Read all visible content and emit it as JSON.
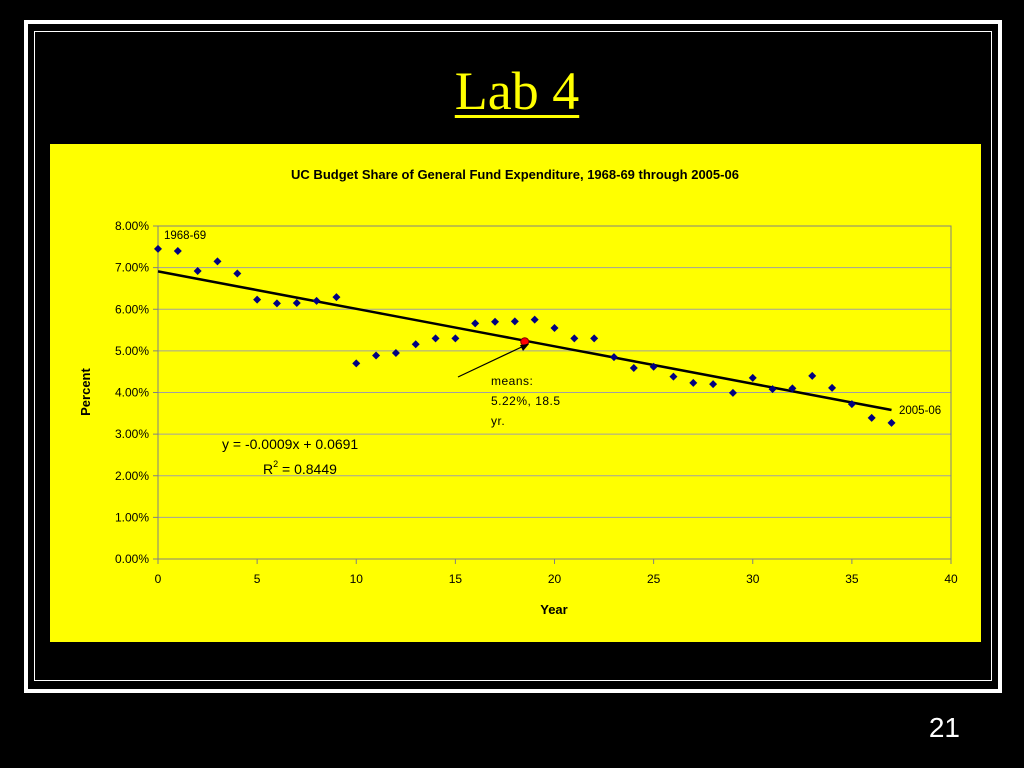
{
  "slide": {
    "title": "Lab 4",
    "page_number": "21"
  },
  "colors": {
    "background": "#000000",
    "title": "#ffff00",
    "chart_background": "#ffff00",
    "points": "#000080",
    "means_point": "#ff0000",
    "trendline": "#000000"
  },
  "chart_data": {
    "type": "scatter",
    "title": "UC Budget Share of General Fund Expenditure, 1968-69 through 2005-06",
    "xlabel": "Year",
    "ylabel": "Percent",
    "xlim": [
      0,
      40
    ],
    "ylim": [
      0,
      0.08
    ],
    "x_ticks": [
      0,
      5,
      10,
      15,
      20,
      25,
      30,
      35,
      40
    ],
    "x_tick_labels": [
      "0",
      "5",
      "10",
      "15",
      "20",
      "25",
      "30",
      "35",
      "40"
    ],
    "y_ticks": [
      0,
      0.01,
      0.02,
      0.03,
      0.04,
      0.05,
      0.06,
      0.07,
      0.08
    ],
    "y_tick_labels": [
      "0.00%",
      "1.00%",
      "2.00%",
      "3.00%",
      "4.00%",
      "5.00%",
      "6.00%",
      "7.00%",
      "8.00%"
    ],
    "grid": "horizontal",
    "legend": "none",
    "points": [
      {
        "x": 0,
        "y": 0.0745
      },
      {
        "x": 1,
        "y": 0.074
      },
      {
        "x": 2,
        "y": 0.0692
      },
      {
        "x": 3,
        "y": 0.0715
      },
      {
        "x": 4,
        "y": 0.0686
      },
      {
        "x": 5,
        "y": 0.0623
      },
      {
        "x": 6,
        "y": 0.0614
      },
      {
        "x": 7,
        "y": 0.0615
      },
      {
        "x": 8,
        "y": 0.062
      },
      {
        "x": 9,
        "y": 0.0629
      },
      {
        "x": 10,
        "y": 0.047
      },
      {
        "x": 11,
        "y": 0.0489
      },
      {
        "x": 12,
        "y": 0.0495
      },
      {
        "x": 13,
        "y": 0.0516
      },
      {
        "x": 14,
        "y": 0.053
      },
      {
        "x": 15,
        "y": 0.053
      },
      {
        "x": 16,
        "y": 0.0566
      },
      {
        "x": 17,
        "y": 0.057
      },
      {
        "x": 18,
        "y": 0.0571
      },
      {
        "x": 19,
        "y": 0.0575
      },
      {
        "x": 20,
        "y": 0.0555
      },
      {
        "x": 21,
        "y": 0.053
      },
      {
        "x": 22,
        "y": 0.053
      },
      {
        "x": 23,
        "y": 0.0485
      },
      {
        "x": 24,
        "y": 0.0459
      },
      {
        "x": 25,
        "y": 0.0462
      },
      {
        "x": 26,
        "y": 0.0438
      },
      {
        "x": 27,
        "y": 0.0423
      },
      {
        "x": 28,
        "y": 0.042
      },
      {
        "x": 29,
        "y": 0.0399
      },
      {
        "x": 30,
        "y": 0.0435
      },
      {
        "x": 31,
        "y": 0.0408
      },
      {
        "x": 32,
        "y": 0.041
      },
      {
        "x": 33,
        "y": 0.044
      },
      {
        "x": 34,
        "y": 0.0411
      },
      {
        "x": 35,
        "y": 0.0372
      },
      {
        "x": 36,
        "y": 0.0339
      },
      {
        "x": 37,
        "y": 0.0327
      }
    ],
    "trendline": {
      "x": [
        0,
        1,
        2,
        3,
        4,
        5,
        6,
        7,
        8,
        9,
        10,
        11,
        12,
        13,
        14,
        15,
        16,
        17,
        18,
        19,
        20,
        21,
        22,
        23,
        24,
        25,
        26,
        27,
        28,
        29,
        30,
        31,
        32,
        33,
        34,
        35,
        36,
        37
      ],
      "y": [
        0.0691,
        0.0682,
        0.0673,
        0.0664,
        0.0655,
        0.0646,
        0.0637,
        0.0628,
        0.0619,
        0.061,
        0.0601,
        0.0592,
        0.0583,
        0.0574,
        0.0565,
        0.0556,
        0.0547,
        0.0538,
        0.0529,
        0.052,
        0.0511,
        0.0502,
        0.0493,
        0.0484,
        0.0475,
        0.0466,
        0.0457,
        0.0448,
        0.0439,
        0.043,
        0.0421,
        0.0412,
        0.0403,
        0.0394,
        0.0385,
        0.0376,
        0.0367,
        0.0358
      ]
    },
    "means_point": {
      "x": 18.5,
      "y": 0.0522
    },
    "annotations": {
      "start_label": "1968-69",
      "end_label": "2005-06",
      "means_label": [
        "means:",
        "5.22%, 18.5",
        "yr."
      ],
      "equation": "y = -0.0009x + 0.0691",
      "r_squared_prefix": "R",
      "r_squared_exponent": "2",
      "r_squared_value": " = 0.8449"
    }
  }
}
